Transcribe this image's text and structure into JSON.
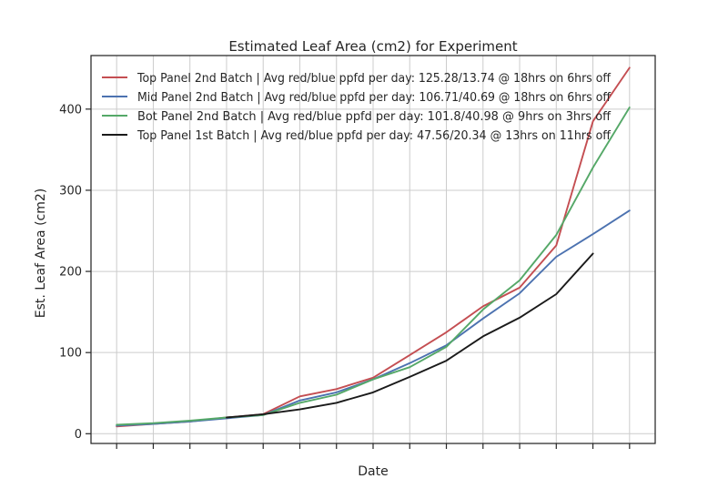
{
  "chart_data": {
    "type": "line",
    "title": "Estimated Leaf Area (cm2) for Experiment",
    "xlabel": "Date",
    "ylabel": "Est. Leaf Area (cm2)",
    "ylim": [
      -12,
      466
    ],
    "yticks": [
      0,
      100,
      200,
      300,
      400
    ],
    "xlim": [
      -0.7,
      14.7
    ],
    "x_tick_positions": [
      0,
      1,
      2,
      3,
      4,
      5,
      6,
      7,
      8,
      9,
      10,
      11,
      12,
      13,
      14
    ],
    "grid": true,
    "legend_position": "top-left",
    "series": [
      {
        "name": "Top Panel 2nd Batch | Avg red/blue ppfd per day: 125.28/13.74 @ 18hrs on 6hrs off",
        "color": "#c44e52",
        "x": [
          0,
          1,
          2,
          3,
          4,
          5,
          6,
          7,
          8,
          9,
          10,
          11,
          12,
          13,
          14
        ],
        "values": [
          9,
          12,
          15,
          20,
          24,
          46,
          55,
          69,
          97,
          125,
          157,
          180,
          232,
          385,
          451
        ]
      },
      {
        "name": "Mid Panel 2nd Batch | Avg red/blue ppfd per day: 106.71/40.69 @ 18hrs on 6hrs off",
        "color": "#4c72b0",
        "x": [
          0,
          1,
          2,
          3,
          4,
          5,
          6,
          7,
          8,
          9,
          10,
          11,
          12,
          13,
          14
        ],
        "values": [
          10,
          12,
          15,
          19,
          23,
          41,
          51,
          67,
          87,
          109,
          142,
          173,
          218,
          246,
          275
        ]
      },
      {
        "name": "Bot Panel 2nd Batch | Avg red/blue ppfd per day: 101.8/40.98 @ 9hrs on 3hrs off",
        "color": "#55a868",
        "x": [
          0,
          1,
          2,
          3,
          4,
          5,
          6,
          7,
          8,
          9,
          10,
          11,
          12,
          13,
          14
        ],
        "values": [
          11,
          13,
          16,
          20,
          23,
          38,
          48,
          67,
          82,
          107,
          153,
          189,
          245,
          328,
          402
        ]
      },
      {
        "name": "Top Panel 1st Batch | Avg red/blue ppfd per day: 47.56/20.34 @ 13hrs on 11hrs off",
        "color": "#1a1a1a",
        "x": [
          3,
          4,
          5,
          6,
          7,
          8,
          9,
          10,
          11,
          12,
          13
        ],
        "values": [
          20,
          24,
          30,
          38,
          51,
          70,
          90,
          120,
          143,
          172,
          222
        ]
      }
    ]
  }
}
